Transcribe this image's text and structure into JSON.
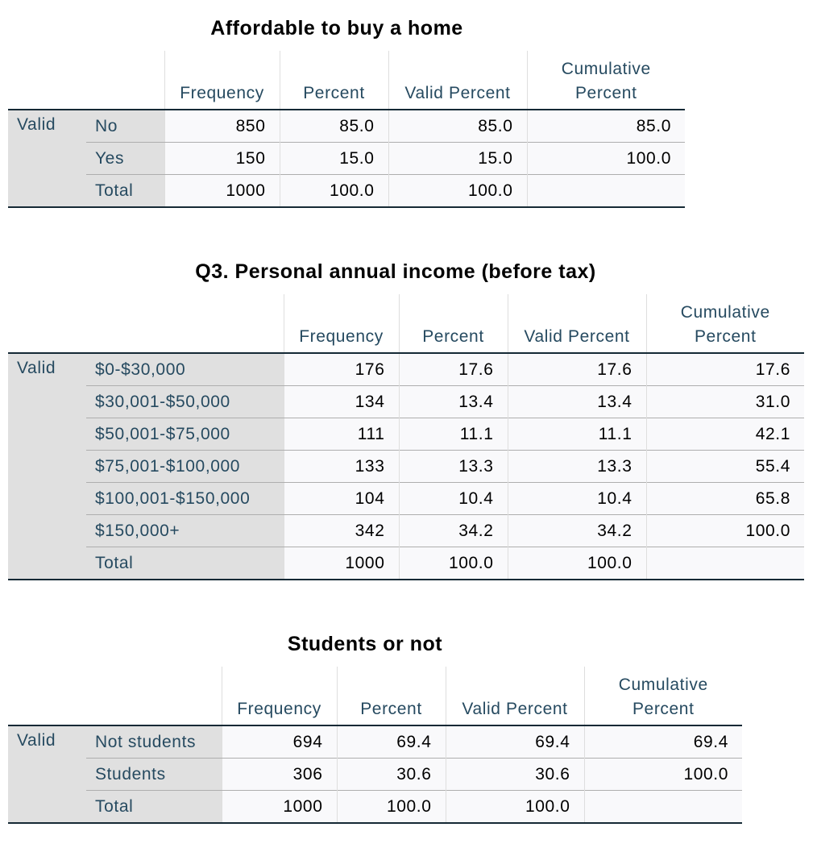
{
  "headers": {
    "frequency": "Frequency",
    "percent": "Percent",
    "valid_percent": "Valid Percent",
    "cumulative_line1": "Cumulative",
    "cumulative_line2": "Percent"
  },
  "tables": [
    {
      "title": "Affordable to buy a home",
      "group_label": "Valid",
      "rows": [
        {
          "label": "No",
          "frequency": "850",
          "percent": "85.0",
          "valid_percent": "85.0",
          "cumulative_percent": "85.0"
        },
        {
          "label": "Yes",
          "frequency": "150",
          "percent": "15.0",
          "valid_percent": "15.0",
          "cumulative_percent": "100.0"
        },
        {
          "label": "Total",
          "frequency": "1000",
          "percent": "100.0",
          "valid_percent": "100.0",
          "cumulative_percent": ""
        }
      ]
    },
    {
      "title": "Q3. Personal annual income (before tax)",
      "group_label": "Valid",
      "rows": [
        {
          "label": "$0-$30,000",
          "frequency": "176",
          "percent": "17.6",
          "valid_percent": "17.6",
          "cumulative_percent": "17.6"
        },
        {
          "label": "$30,001-$50,000",
          "frequency": "134",
          "percent": "13.4",
          "valid_percent": "13.4",
          "cumulative_percent": "31.0"
        },
        {
          "label": "$50,001-$75,000",
          "frequency": "111",
          "percent": "11.1",
          "valid_percent": "11.1",
          "cumulative_percent": "42.1"
        },
        {
          "label": "$75,001-$100,000",
          "frequency": "133",
          "percent": "13.3",
          "valid_percent": "13.3",
          "cumulative_percent": "55.4"
        },
        {
          "label": "$100,001-$150,000",
          "frequency": "104",
          "percent": "10.4",
          "valid_percent": "10.4",
          "cumulative_percent": "65.8"
        },
        {
          "label": "$150,000+",
          "frequency": "342",
          "percent": "34.2",
          "valid_percent": "34.2",
          "cumulative_percent": "100.0"
        },
        {
          "label": "Total",
          "frequency": "1000",
          "percent": "100.0",
          "valid_percent": "100.0",
          "cumulative_percent": ""
        }
      ]
    },
    {
      "title": "Students or not",
      "group_label": "Valid",
      "rows": [
        {
          "label": "Not students",
          "frequency": "694",
          "percent": "69.4",
          "valid_percent": "69.4",
          "cumulative_percent": "69.4"
        },
        {
          "label": "Students",
          "frequency": "306",
          "percent": "30.6",
          "valid_percent": "30.6",
          "cumulative_percent": "100.0"
        },
        {
          "label": "Total",
          "frequency": "1000",
          "percent": "100.0",
          "valid_percent": "100.0",
          "cumulative_percent": ""
        }
      ]
    }
  ]
}
